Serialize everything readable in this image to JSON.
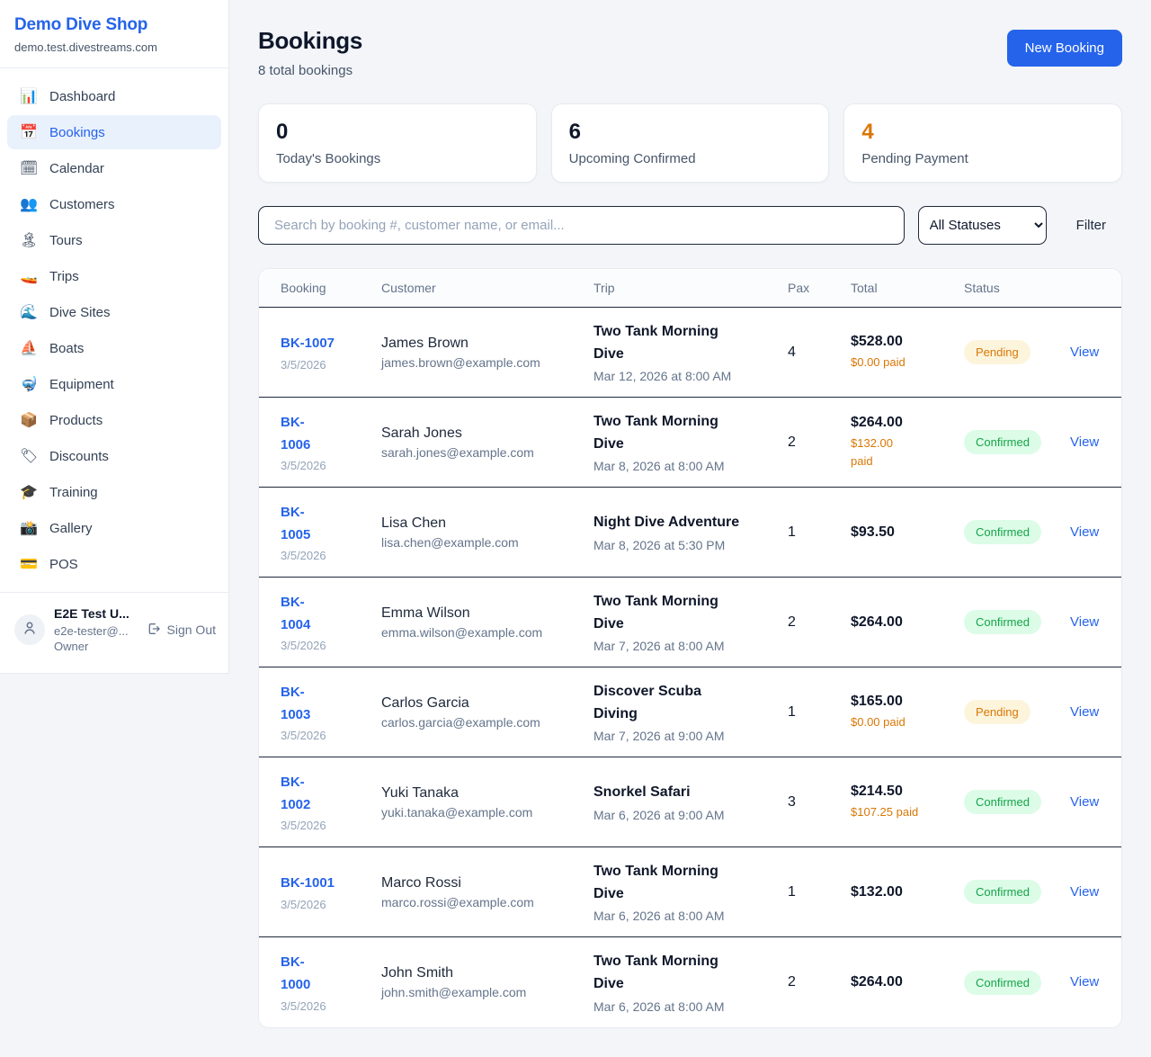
{
  "sidebar": {
    "brand": {
      "name": "Demo Dive Shop",
      "domain": "demo.test.divestreams.com"
    },
    "items": [
      {
        "label": "Dashboard",
        "icon": "📊",
        "icon_name": "bar-chart-icon",
        "active": false
      },
      {
        "label": "Bookings",
        "icon": "📅",
        "icon_name": "calendar-date-icon",
        "active": true
      },
      {
        "label": "Calendar",
        "icon": "🗓",
        "icon_name": "calendar-pad-icon",
        "active": false
      },
      {
        "label": "Customers",
        "icon": "👥",
        "icon_name": "people-icon",
        "active": false
      },
      {
        "label": "Tours",
        "icon": "🏝",
        "icon_name": "island-icon",
        "active": false
      },
      {
        "label": "Trips",
        "icon": "🚤",
        "icon_name": "speedboat-icon",
        "active": false
      },
      {
        "label": "Dive Sites",
        "icon": "🌊",
        "icon_name": "wave-icon",
        "active": false
      },
      {
        "label": "Boats",
        "icon": "⛵",
        "icon_name": "sailboat-icon",
        "active": false
      },
      {
        "label": "Equipment",
        "icon": "🤿",
        "icon_name": "diving-mask-icon",
        "active": false
      },
      {
        "label": "Products",
        "icon": "📦",
        "icon_name": "package-icon",
        "active": false
      },
      {
        "label": "Discounts",
        "icon": "🏷",
        "icon_name": "tag-icon",
        "active": false
      },
      {
        "label": "Training",
        "icon": "🎓",
        "icon_name": "graduation-cap-icon",
        "active": false
      },
      {
        "label": "Gallery",
        "icon": "📸",
        "icon_name": "camera-icon",
        "active": false
      },
      {
        "label": "POS",
        "icon": "💳",
        "icon_name": "credit-card-icon",
        "active": false
      }
    ],
    "user": {
      "name": "E2E Test U...",
      "email": "e2e-tester@...",
      "role": "Owner",
      "signout_label": "Sign Out"
    }
  },
  "header": {
    "title": "Bookings",
    "subtitle": "8 total bookings",
    "new_booking_label": "New Booking"
  },
  "stats": [
    {
      "value": "0",
      "label": "Today's Bookings",
      "accent": "dark"
    },
    {
      "value": "6",
      "label": "Upcoming Confirmed",
      "accent": "dark"
    },
    {
      "value": "4",
      "label": "Pending Payment",
      "accent": "orange"
    }
  ],
  "controls": {
    "search_placeholder": "Search by booking #, customer name, or email...",
    "status_filter_value": "All Statuses",
    "filter_label": "Filter"
  },
  "table": {
    "columns": [
      "Booking",
      "Customer",
      "Trip",
      "Pax",
      "Total",
      "Status"
    ],
    "rows": [
      {
        "number": "BK-1007",
        "date": "3/5/2026",
        "customer": "James Brown",
        "email": "james.brown@example.com",
        "trip": "Two Tank Morning\nDive",
        "trip_date": "Mar 12, 2026 at 8:00 AM",
        "pax": "4",
        "total": "$528.00",
        "paid": "$0.00 paid",
        "status": "Pending",
        "view": "View"
      },
      {
        "number": "BK-\n1006",
        "date": "3/5/2026",
        "customer": "Sarah Jones",
        "email": "sarah.jones@example.com",
        "trip": "Two Tank Morning\nDive",
        "trip_date": "Mar 8, 2026 at 8:00 AM",
        "pax": "2",
        "total": "$264.00",
        "paid": "$132.00\npaid",
        "status": "Confirmed",
        "view": "View"
      },
      {
        "number": "BK-\n1005",
        "date": "3/5/2026",
        "customer": "Lisa Chen",
        "email": "lisa.chen@example.com",
        "trip": "Night Dive Adventure",
        "trip_date": "Mar 8, 2026 at 5:30 PM",
        "pax": "1",
        "total": "$93.50",
        "paid": "",
        "status": "Confirmed",
        "view": "View"
      },
      {
        "number": "BK-\n1004",
        "date": "3/5/2026",
        "customer": "Emma Wilson",
        "email": "emma.wilson@example.com",
        "trip": "Two Tank Morning\nDive",
        "trip_date": "Mar 7, 2026 at 8:00 AM",
        "pax": "2",
        "total": "$264.00",
        "paid": "",
        "status": "Confirmed",
        "view": "View"
      },
      {
        "number": "BK-\n1003",
        "date": "3/5/2026",
        "customer": "Carlos Garcia",
        "email": "carlos.garcia@example.com",
        "trip": "Discover Scuba\nDiving",
        "trip_date": "Mar 7, 2026 at 9:00 AM",
        "pax": "1",
        "total": "$165.00",
        "paid": "$0.00 paid",
        "status": "Pending",
        "view": "View"
      },
      {
        "number": "BK-\n1002",
        "date": "3/5/2026",
        "customer": "Yuki Tanaka",
        "email": "yuki.tanaka@example.com",
        "trip": "Snorkel Safari",
        "trip_date": "Mar 6, 2026 at 9:00 AM",
        "pax": "3",
        "total": "$214.50",
        "paid": "$107.25 paid",
        "status": "Confirmed",
        "view": "View"
      },
      {
        "number": "BK-1001",
        "date": "3/5/2026",
        "customer": "Marco Rossi",
        "email": "marco.rossi@example.com",
        "trip": "Two Tank Morning\nDive",
        "trip_date": "Mar 6, 2026 at 8:00 AM",
        "pax": "1",
        "total": "$132.00",
        "paid": "",
        "status": "Confirmed",
        "view": "View"
      },
      {
        "number": "BK-\n1000",
        "date": "3/5/2026",
        "customer": "John Smith",
        "email": "john.smith@example.com",
        "trip": "Two Tank Morning\nDive",
        "trip_date": "Mar 6, 2026 at 8:00 AM",
        "pax": "2",
        "total": "$264.00",
        "paid": "",
        "status": "Confirmed",
        "view": "View"
      }
    ]
  },
  "colors": {
    "accent_blue": "#2563eb",
    "pending_orange": "#d97706",
    "confirmed_green": "#16a34a"
  }
}
